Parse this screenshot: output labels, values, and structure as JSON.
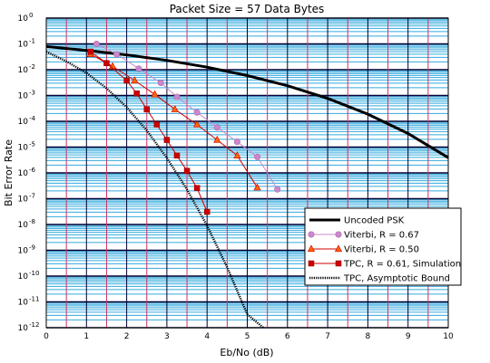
{
  "chart_data": {
    "type": "line",
    "title": "Packet Size = 57 Data Bytes",
    "xlabel": "Eb/No (dB)",
    "ylabel": "Bit Error Rate",
    "xlim": [
      0,
      10
    ],
    "ylim": [
      1e-12,
      1
    ],
    "yscale": "log",
    "x_ticks": [
      "0",
      "1",
      "2",
      "3",
      "4",
      "5",
      "6",
      "7",
      "8",
      "9",
      "10"
    ],
    "y_ticks": [
      {
        "base": "10",
        "exp": "0"
      },
      {
        "base": "10",
        "exp": "-1"
      },
      {
        "base": "10",
        "exp": "-2"
      },
      {
        "base": "10",
        "exp": "-3"
      },
      {
        "base": "10",
        "exp": "-4"
      },
      {
        "base": "10",
        "exp": "-5"
      },
      {
        "base": "10",
        "exp": "-6"
      },
      {
        "base": "10",
        "exp": "-7"
      },
      {
        "base": "10",
        "exp": "-8"
      },
      {
        "base": "10",
        "exp": "-9"
      },
      {
        "base": "10",
        "exp": "-10"
      },
      {
        "base": "10",
        "exp": "-11"
      },
      {
        "base": "10",
        "exp": "-12"
      }
    ],
    "grid": true,
    "legend_position": "bottom-right",
    "series": [
      {
        "name": "Uncoded PSK",
        "color": "#000000",
        "marker": "none",
        "style": "thick",
        "x": [
          0,
          1,
          2,
          3,
          4,
          5,
          6,
          7,
          8,
          9,
          10
        ],
        "y": [
          0.079,
          0.056,
          0.0375,
          0.023,
          0.0125,
          0.0059,
          0.0024,
          0.00077,
          0.00019,
          3.36e-05,
          3.9e-06
        ]
      },
      {
        "name": "Viterbi, R = 0.67",
        "color": "#cc88cc",
        "marker": "circle",
        "style": "line",
        "x": [
          1.25,
          1.75,
          2.3,
          2.85,
          3.25,
          3.75,
          4.25,
          4.75,
          5.25,
          5.75
        ],
        "y": [
          0.1,
          0.04,
          0.011,
          0.0031,
          0.00089,
          0.00022,
          5.8e-05,
          1.6e-05,
          4.2e-06,
          2.3e-07
        ]
      },
      {
        "name": "Viterbi, R = 0.50",
        "color": "#cc0000",
        "marker": "triangle",
        "style": "line",
        "x": [
          1.1,
          1.65,
          2.2,
          2.7,
          3.2,
          3.75,
          4.25,
          4.75,
          5.25
        ],
        "y": [
          0.04,
          0.0135,
          0.0038,
          0.0011,
          0.00029,
          7.5e-05,
          1.9e-05,
          4.7e-06,
          2.7e-07
        ]
      },
      {
        "name": "TPC, R = 0.61, Simulation",
        "color": "#cc0000",
        "marker": "square",
        "style": "line",
        "x": [
          1.1,
          1.5,
          2.0,
          2.25,
          2.5,
          2.75,
          3.0,
          3.25,
          3.5,
          3.75,
          4.0
        ],
        "y": [
          0.05,
          0.018,
          0.0038,
          0.0012,
          0.00029,
          7.5e-05,
          1.9e-05,
          4.7e-06,
          1.2e-06,
          2.6e-07,
          3.1e-08
        ]
      },
      {
        "name": "TPC, Asymptotic Bound",
        "color": "#000000",
        "marker": "none",
        "style": "dotted",
        "x": [
          0,
          0.5,
          1,
          1.5,
          2,
          2.5,
          3,
          3.5,
          4,
          4.5,
          5,
          5.4
        ],
        "y": [
          0.05,
          0.021,
          0.0075,
          0.0019,
          0.00035,
          4.4e-05,
          3.8e-06,
          2.3e-07,
          9e-09,
          2.2e-10,
          3.3e-12,
          1e-12
        ]
      }
    ]
  }
}
